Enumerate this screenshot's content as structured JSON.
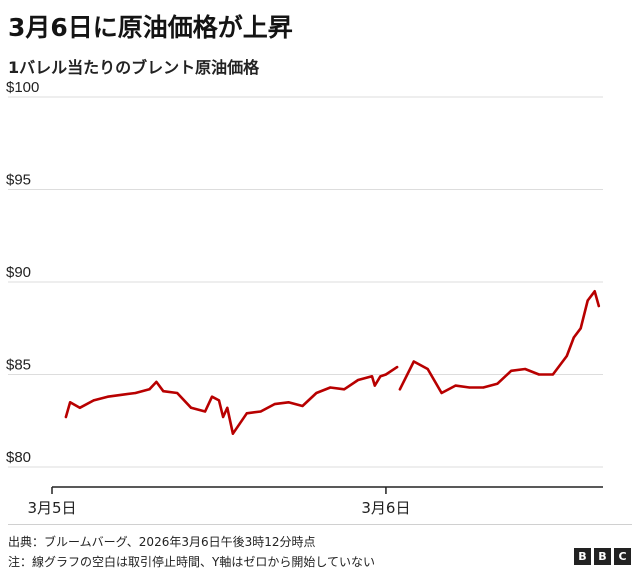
{
  "header": {
    "title": "3月6日に原油価格が上昇",
    "subtitle": "1バレル当たりのブレント原油価格"
  },
  "footer": {
    "source": "出典：ブルームバーグ、2026年3月6日午後3時12分時点",
    "note": "注：線グラフの空白は取引停止時間、Y軸はゼロから開始していない",
    "logo": [
      "B",
      "B",
      "C"
    ]
  },
  "colors": {
    "line": "#b80000",
    "grid": "#dddddd",
    "axis": "#222222",
    "text": "#222222"
  },
  "chart_data": {
    "type": "line",
    "title": "3月6日に原油価格が上昇",
    "subtitle": "1バレル当たりのブレント原油価格",
    "ylabel": "",
    "xlabel": "",
    "ylim": [
      80,
      100
    ],
    "y_ticks": [
      80,
      85,
      90,
      95,
      100
    ],
    "y_tick_labels": [
      "$80",
      "$85",
      "$90",
      "$95",
      "$100"
    ],
    "x_unit": "hours since 3月5日 00:00",
    "xlim": [
      0,
      39.6
    ],
    "x_ticks": [
      0,
      24
    ],
    "x_tick_labels": [
      "3月5日",
      "3月6日"
    ],
    "grid": true,
    "series": [
      {
        "name": "",
        "segments": [
          {
            "x": [
              1.0,
              1.3,
              2.0,
              3.0,
              4.0,
              5.0,
              6.0,
              7.0,
              7.5,
              8.0,
              9.0,
              10.0,
              11.0,
              11.5,
              12.0,
              12.3,
              12.6,
              13.0,
              14.0,
              15.0,
              16.0,
              17.0,
              18.0,
              19.0,
              20.0,
              21.0,
              22.0,
              23.0,
              23.2,
              23.6,
              24.0,
              24.8
            ],
            "y": [
              82.7,
              83.5,
              83.2,
              83.6,
              83.8,
              83.9,
              84.0,
              84.2,
              84.6,
              84.1,
              84.0,
              83.2,
              83.0,
              83.8,
              83.6,
              82.7,
              83.2,
              81.8,
              82.9,
              83.0,
              83.4,
              83.5,
              83.3,
              84.0,
              84.3,
              84.2,
              84.7,
              84.9,
              84.4,
              84.9,
              85.0,
              85.4
            ]
          },
          {
            "x": [
              25.0,
              26.0,
              27.0,
              28.0,
              29.0,
              30.0,
              31.0,
              32.0,
              33.0,
              34.0,
              35.0,
              36.0,
              37.0,
              37.5,
              38.0,
              38.5,
              39.0,
              39.3
            ],
            "y": [
              84.2,
              85.7,
              85.3,
              84.0,
              84.4,
              84.3,
              84.3,
              84.5,
              85.2,
              85.3,
              85.0,
              85.0,
              86.0,
              87.0,
              87.5,
              89.0,
              89.5,
              88.7
            ]
          }
        ]
      }
    ]
  }
}
